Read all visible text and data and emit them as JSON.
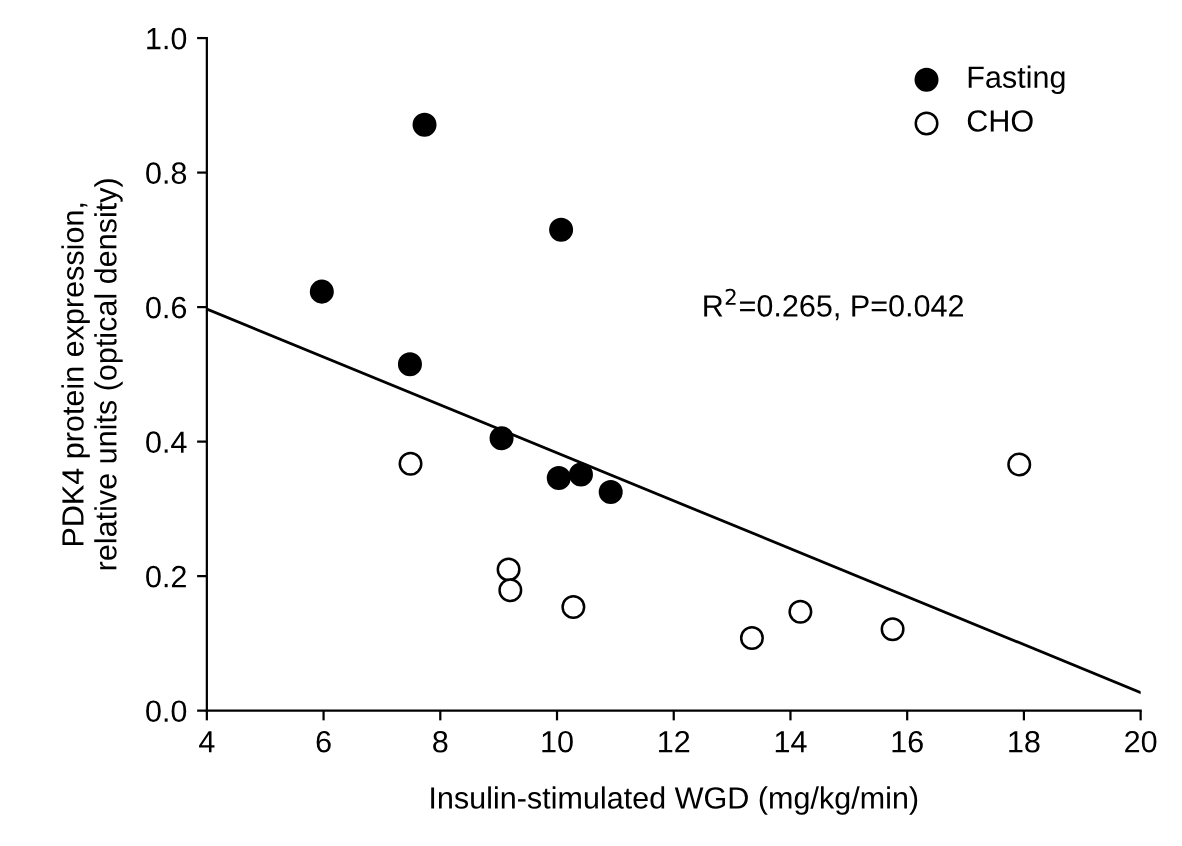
{
  "chart_data": {
    "type": "scatter",
    "xlabel": "Insulin-stimulated WGD (mg/kg/min)",
    "ylabel": "PDK4 protein expression,\nrelative units (optical density)",
    "xlim": [
      4,
      20
    ],
    "xticks": [
      4,
      6,
      8,
      10,
      12,
      14,
      16,
      18,
      20
    ],
    "ylim": [
      0,
      1.0
    ],
    "yticks": [
      {
        "value": 0,
        "label": "0.0"
      },
      0.2,
      0.4,
      0.6,
      0.8,
      {
        "value": 1,
        "label": "1.0"
      }
    ],
    "grid": false,
    "legend": "top right",
    "marker": "circle",
    "annotations": [
      "R$^{2}$=0.265, P=0.042"
    ],
    "series": [
      {
        "name": "Fasting",
        "color": "#000000",
        "x": [
          5.97,
          7.73,
          7.48,
          9.05,
          10.07,
          10.03,
          10.41,
          10.92
        ],
        "values": [
          0.623,
          0.871,
          0.515,
          0.405,
          0.715,
          0.346,
          0.351,
          0.325
        ]
      },
      {
        "name": "CHO",
        "color": "#ffffff",
        "x": [
          7.49,
          9.17,
          9.2,
          10.28,
          13.34,
          14.17,
          15.75,
          17.92
        ],
        "values": [
          0.367,
          0.21,
          0.179,
          0.154,
          0.108,
          0.147,
          0.121,
          0.366
        ]
      },
      {
        "type": "line",
        "color": "#000000",
        "x": [
          4,
          20
        ],
        "values": [
          0.597,
          0.027
        ],
        "marker": "none",
        "line_style": "solid"
      }
    ]
  }
}
